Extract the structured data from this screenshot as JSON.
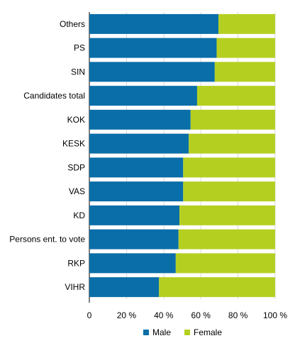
{
  "chart_data": {
    "type": "bar",
    "orientation": "horizontal",
    "stacked": true,
    "categories": [
      "Others",
      "PS",
      "SIN",
      "Candidates total",
      "KOK",
      "KESK",
      "SDP",
      "VAS",
      "KD",
      "Persons ent. to vote",
      "RKP",
      "VIHR"
    ],
    "series": [
      {
        "name": "Male",
        "color": "#0a6ea8",
        "values": [
          69.5,
          68.5,
          67.5,
          58,
          54.5,
          53.5,
          50.5,
          50.5,
          48.5,
          48,
          46.5,
          37.5
        ]
      },
      {
        "name": "Female",
        "color": "#b5cf21",
        "values": [
          30.5,
          31.5,
          32.5,
          42,
          45.5,
          46.5,
          49.5,
          49.5,
          51.5,
          52,
          53.5,
          62.5
        ]
      }
    ],
    "xlim": [
      0,
      100
    ],
    "x_ticks": [
      "0",
      "20 %",
      "40 %",
      "60 %",
      "80 %",
      "100 %"
    ],
    "x_tick_values": [
      0,
      20,
      40,
      60,
      80,
      100
    ],
    "grid": true,
    "legend_position": "bottom"
  }
}
